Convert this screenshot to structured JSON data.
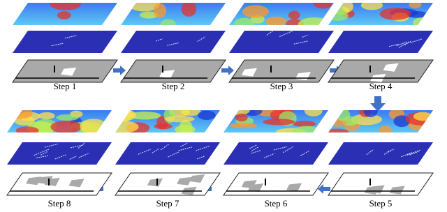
{
  "steps": [
    {
      "label": "Step 1"
    },
    {
      "label": "Step 2"
    },
    {
      "label": "Step 3"
    },
    {
      "label": "Step 4"
    },
    {
      "label": "Step 5"
    },
    {
      "label": "Step 6"
    },
    {
      "label": "Step 7"
    },
    {
      "label": "Step 8"
    }
  ]
}
